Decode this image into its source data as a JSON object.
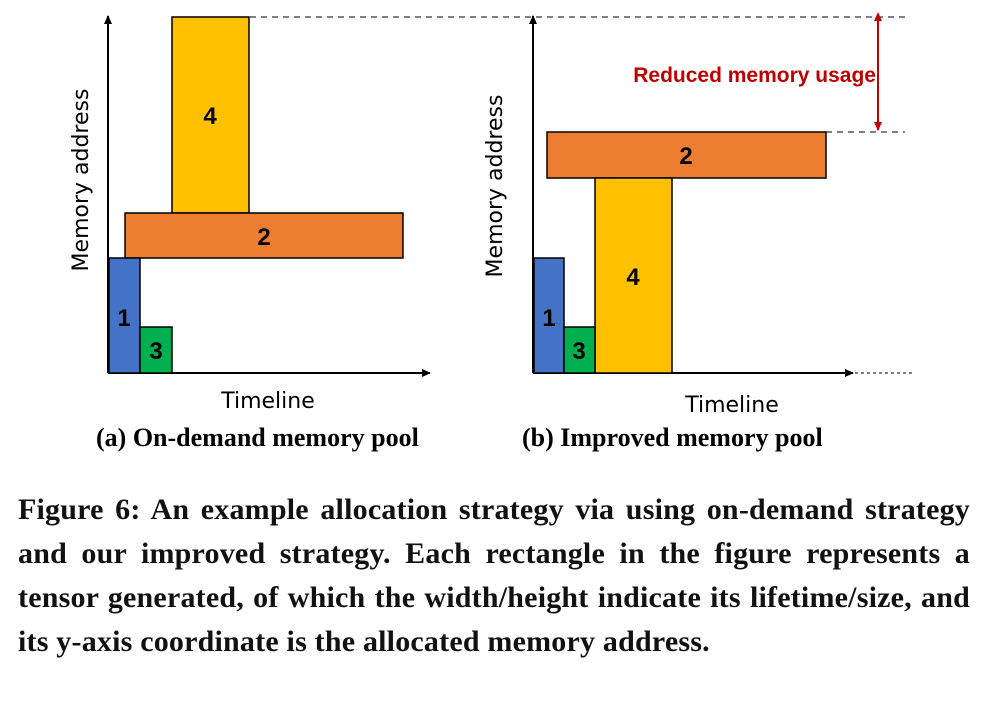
{
  "panel_a": {
    "y_axis_label": "Memory address",
    "x_axis_label": "Timeline",
    "subcaption": "(a) On-demand memory pool",
    "blocks": {
      "t1": "1",
      "t2": "2",
      "t3": "3",
      "t4": "4"
    }
  },
  "panel_b": {
    "y_axis_label": "Memory address",
    "x_axis_label": "Timeline",
    "subcaption": "(b) Improved memory pool",
    "annotation": "Reduced memory usage",
    "blocks": {
      "t1": "1",
      "t2": "2",
      "t3": "3",
      "t4": "4"
    }
  },
  "colors": {
    "tensor_1": "#4472C4",
    "tensor_2": "#ED7D31",
    "tensor_3": "#00B050",
    "tensor_4": "#FFC000",
    "annotation": "#C00000"
  },
  "caption": "Figure 6: An example allocation strategy via using on-demand strategy and our improved strategy. Each rectangle in the figure represents a tensor generated, of which the width/height indicate its lifetime/size, and its y-axis coordinate is the allocated memory address."
}
